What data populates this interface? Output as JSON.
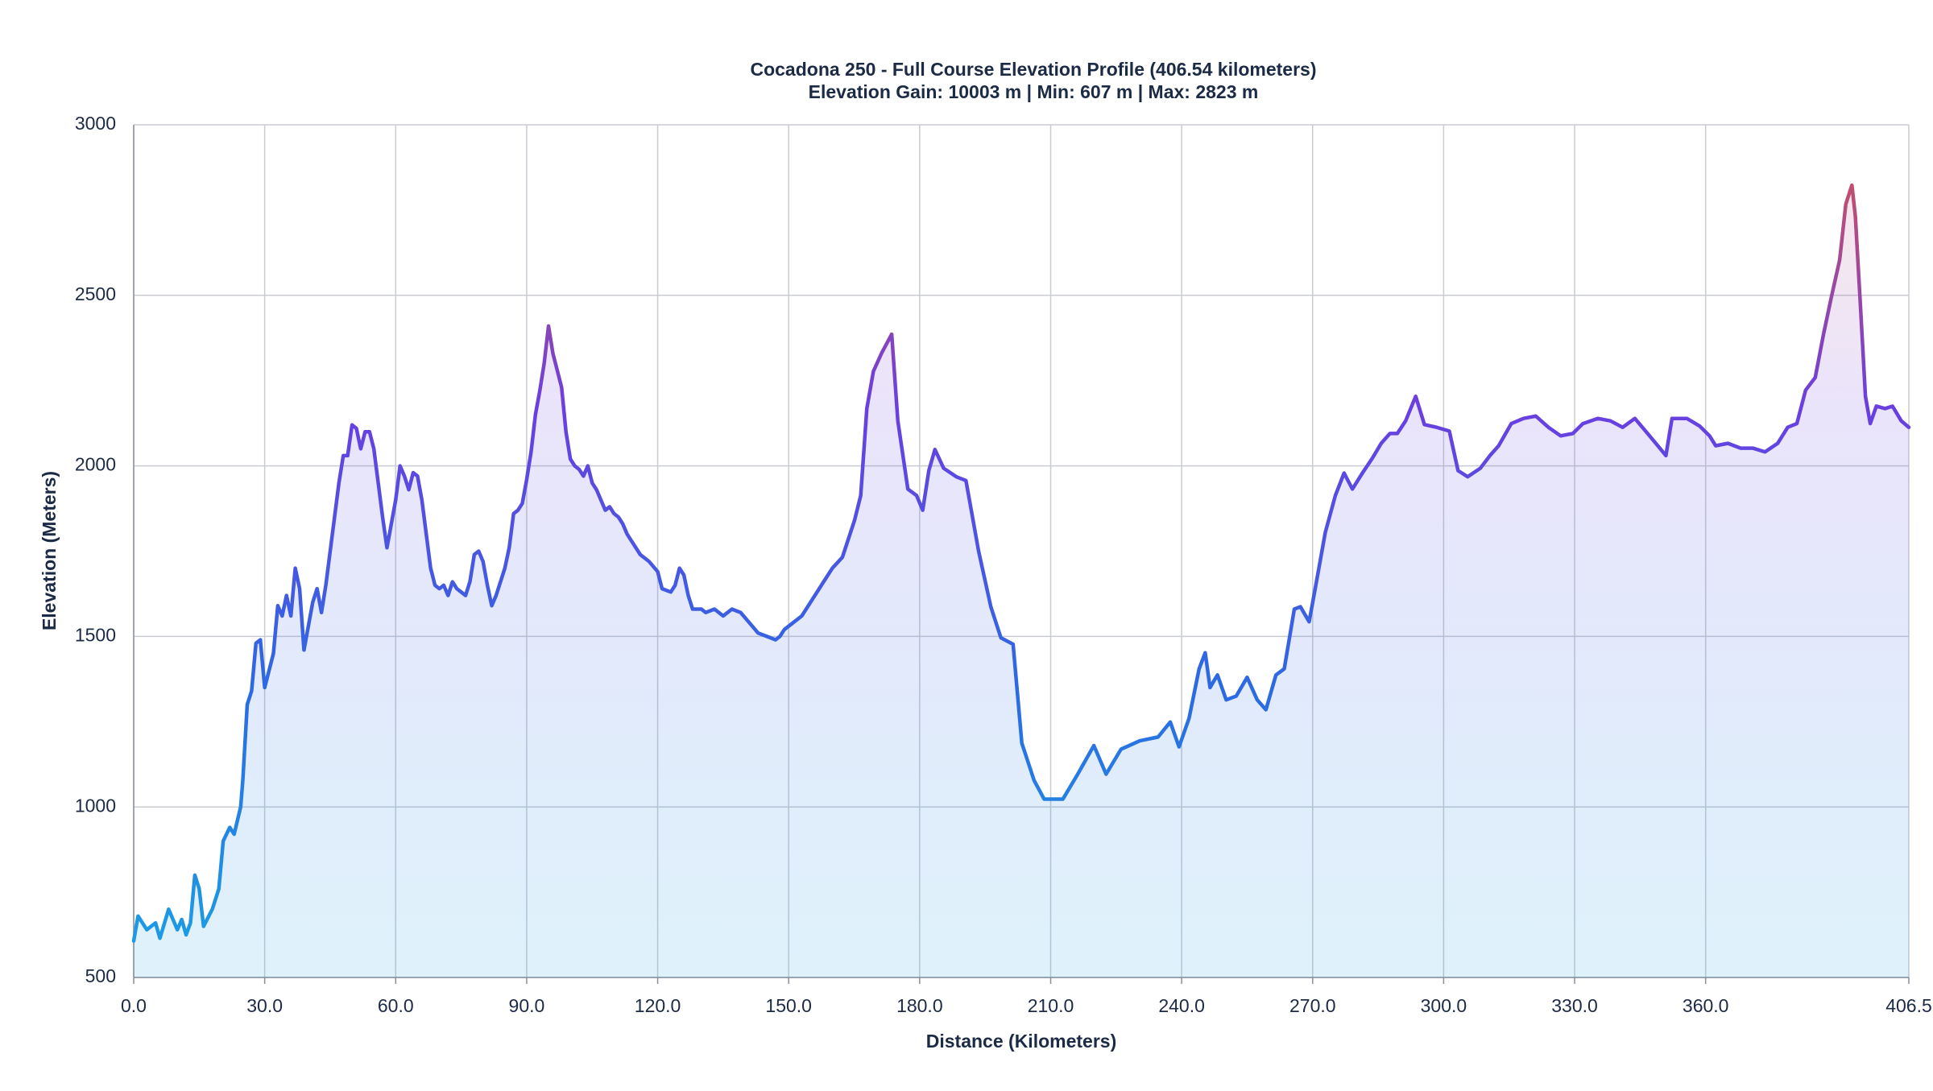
{
  "chart_data": {
    "type": "area",
    "title": "Cocadona 250 - Full Course Elevation Profile (406.54 kilometers)",
    "subtitle": "Elevation Gain: 10003 m | Min: 607 m | Max: 2823 m",
    "x_label": "Distance (Kilometers)",
    "y_label": "Elevation (Meters)",
    "grid": true,
    "gradient_colors": [
      "#1aa3e4",
      "#2b6be2",
      "#6a3fe0",
      "#d9534f"
    ],
    "xlim": [
      0,
      406.54
    ],
    "ylim": [
      500,
      3000
    ],
    "xticks": [
      {
        "value": 0,
        "label": "0.0"
      },
      {
        "value": 30,
        "label": "30.0"
      },
      {
        "value": 60,
        "label": "60.0"
      },
      {
        "value": 90,
        "label": "90.0"
      },
      {
        "value": 120,
        "label": "120.0"
      },
      {
        "value": 150,
        "label": "150.0"
      },
      {
        "value": 180,
        "label": "180.0"
      },
      {
        "value": 210,
        "label": "210.0"
      },
      {
        "value": 240,
        "label": "240.0"
      },
      {
        "value": 270,
        "label": "270.0"
      },
      {
        "value": 300,
        "label": "300.0"
      },
      {
        "value": 330,
        "label": "330.0"
      },
      {
        "value": 360,
        "label": "360.0"
      },
      {
        "value": 406.54,
        "label": "406.5"
      }
    ],
    "yticks": [
      500,
      1000,
      1500,
      2000,
      2500,
      3000
    ],
    "x": [
      0,
      1,
      3,
      5,
      6,
      8,
      10,
      11,
      12,
      13,
      14,
      15,
      16,
      18,
      19.5,
      20.5,
      22,
      23,
      24.5,
      25,
      26,
      27,
      28,
      29,
      30,
      31,
      32,
      33,
      34,
      35,
      36,
      37,
      38,
      39,
      40,
      41,
      42,
      43,
      44,
      45,
      46,
      47,
      48,
      49,
      50,
      51,
      52,
      53,
      54,
      55,
      56,
      57,
      58,
      59,
      60,
      61,
      62,
      63,
      64,
      65,
      66,
      67,
      68,
      69,
      70,
      71,
      72,
      73,
      74,
      75,
      76,
      77,
      78,
      79,
      80,
      81,
      82,
      83,
      84,
      85,
      86,
      87,
      88,
      89,
      90,
      91,
      92,
      93,
      94,
      95,
      96,
      97,
      98,
      99,
      100,
      101,
      102,
      103,
      104,
      105,
      106,
      107,
      108,
      109,
      110,
      111,
      112,
      113,
      114,
      115,
      116,
      117,
      118,
      120,
      121,
      123,
      124,
      125,
      126,
      127,
      128,
      130,
      131,
      133,
      135,
      137,
      139,
      141,
      143,
      145,
      147,
      148,
      149,
      151,
      153,
      155,
      158,
      160,
      162.3,
      165.1,
      166.5,
      167.9,
      169.4,
      171.3,
      173.6,
      175,
      177.3,
      179.3,
      180.7,
      182.1,
      183.5,
      185.5,
      188.4,
      190.6,
      193.5,
      196.3,
      198.6,
      201.4,
      203.4,
      206.2,
      208.5,
      212.8,
      216.2,
      219.9,
      222.7,
      226.1,
      230.4,
      234.6,
      237.4,
      239.4,
      241.7,
      244,
      245.4,
      246.5,
      248.2,
      250.2,
      252.5,
      255,
      257.3,
      259.3,
      261.6,
      263.5,
      265.8,
      267.2,
      269.2,
      270.6,
      272.9,
      275.2,
      277.2,
      279.1,
      281.4,
      283.7,
      285.7,
      287.7,
      289.4,
      291.3,
      293.6,
      295.6,
      298.4,
      301.3,
      303.3,
      305.5,
      308.4,
      310.6,
      312.6,
      315.5,
      318.3,
      321.1,
      324,
      326.8,
      329.6,
      331.9,
      335.3,
      338.2,
      341,
      343.8,
      346.7,
      349.5,
      350.9,
      352.3,
      355.7,
      358.6,
      360.9,
      362.3,
      365.1,
      368,
      370.8,
      373.6,
      376.5,
      378.8,
      380.9,
      382.9,
      385.1,
      387,
      388.8,
      390.7,
      392.1,
      393.5,
      394.3,
      395.5,
      396.6,
      397.7,
      399.1,
      401.1,
      402.8,
      404.8,
      406.54
    ],
    "values": [
      607,
      680,
      640,
      660,
      615,
      700,
      640,
      670,
      625,
      660,
      800,
      760,
      650,
      700,
      760,
      900,
      940,
      920,
      1000,
      1080,
      1300,
      1340,
      1480,
      1490,
      1350,
      1400,
      1450,
      1590,
      1560,
      1620,
      1560,
      1700,
      1640,
      1460,
      1530,
      1600,
      1640,
      1570,
      1650,
      1750,
      1850,
      1950,
      2030,
      2030,
      2120,
      2110,
      2050,
      2100,
      2100,
      2050,
      1950,
      1850,
      1760,
      1830,
      1900,
      2000,
      1970,
      1930,
      1980,
      1970,
      1900,
      1800,
      1700,
      1650,
      1640,
      1650,
      1620,
      1660,
      1640,
      1630,
      1620,
      1660,
      1740,
      1750,
      1720,
      1650,
      1590,
      1620,
      1660,
      1700,
      1760,
      1860,
      1870,
      1890,
      1960,
      2040,
      2150,
      2220,
      2300,
      2410,
      2330,
      2280,
      2230,
      2100,
      2020,
      2000,
      1990,
      1970,
      2000,
      1950,
      1930,
      1900,
      1870,
      1880,
      1860,
      1850,
      1830,
      1800,
      1780,
      1760,
      1740,
      1730,
      1720,
      1690,
      1640,
      1630,
      1650,
      1700,
      1680,
      1620,
      1580,
      1580,
      1570,
      1580,
      1560,
      1580,
      1570,
      1540,
      1510,
      1500,
      1490,
      1500,
      1520,
      1540,
      1560,
      1600,
      1660,
      1700,
      1732,
      1841,
      1913,
      2168,
      2277,
      2331,
      2386,
      2132,
      1932,
      1913,
      1870,
      1986,
      2048,
      1993,
      1968,
      1957,
      1750,
      1587,
      1496,
      1477,
      1187,
      1078,
      1023,
      1023,
      1096,
      1180,
      1096,
      1169,
      1194,
      1205,
      1249,
      1176,
      1260,
      1405,
      1452,
      1350,
      1387,
      1314,
      1325,
      1380,
      1314,
      1285,
      1387,
      1405,
      1580,
      1587,
      1543,
      1641,
      1805,
      1913,
      1979,
      1932,
      1979,
      2023,
      2066,
      2095,
      2095,
      2132,
      2204,
      2121,
      2113,
      2102,
      1986,
      1968,
      1993,
      2030,
      2059,
      2124,
      2139,
      2146,
      2113,
      2088,
      2095,
      2124,
      2139,
      2132,
      2113,
      2139,
      2095,
      2052,
      2030,
      2139,
      2139,
      2117,
      2088,
      2059,
      2066,
      2052,
      2052,
      2041,
      2066,
      2113,
      2124,
      2222,
      2259,
      2386,
      2495,
      2604,
      2767,
      2823,
      2731,
      2459,
      2204,
      2124,
      2175,
      2168,
      2175,
      2132,
      2113
    ]
  }
}
